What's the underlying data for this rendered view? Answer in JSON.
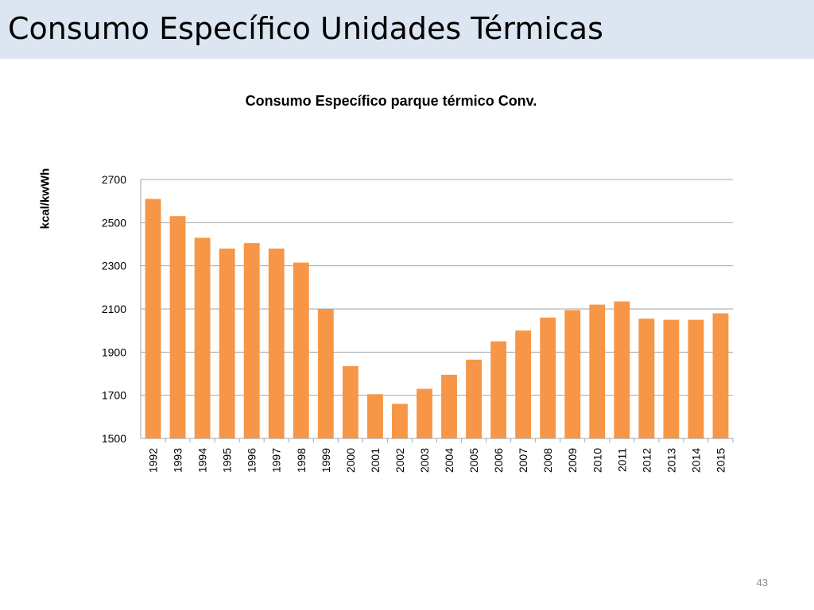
{
  "slide": {
    "title": "Consumo Específico Unidades Térmicas",
    "page_number": "43"
  },
  "colors": {
    "title_bar": "#dce6f2",
    "bar": "#f79646",
    "gridline": "#a6a6a6"
  },
  "chart_data": {
    "type": "bar",
    "title": "Consumo Específico parque térmico Conv.",
    "xlabel": "",
    "ylabel": "kcal/kwWh",
    "ylim": [
      1500,
      2700
    ],
    "yticks": [
      "1500",
      "1700",
      "1900",
      "2100",
      "2300",
      "2500",
      "2700"
    ],
    "grid": true,
    "legend": "none",
    "categories": [
      "1992",
      "1993",
      "1994",
      "1995",
      "1996",
      "1997",
      "1998",
      "1999",
      "2000",
      "2001",
      "2002",
      "2003",
      "2004",
      "2005",
      "2006",
      "2007",
      "2008",
      "2009",
      "2010",
      "2011",
      "2012",
      "2013",
      "2014",
      "2015"
    ],
    "values": [
      2610,
      2530,
      2430,
      2380,
      2405,
      2380,
      2315,
      2100,
      1835,
      1705,
      1660,
      1730,
      1795,
      1865,
      1950,
      2000,
      2060,
      2095,
      2120,
      2135,
      2055,
      2050,
      2050,
      2080
    ]
  }
}
